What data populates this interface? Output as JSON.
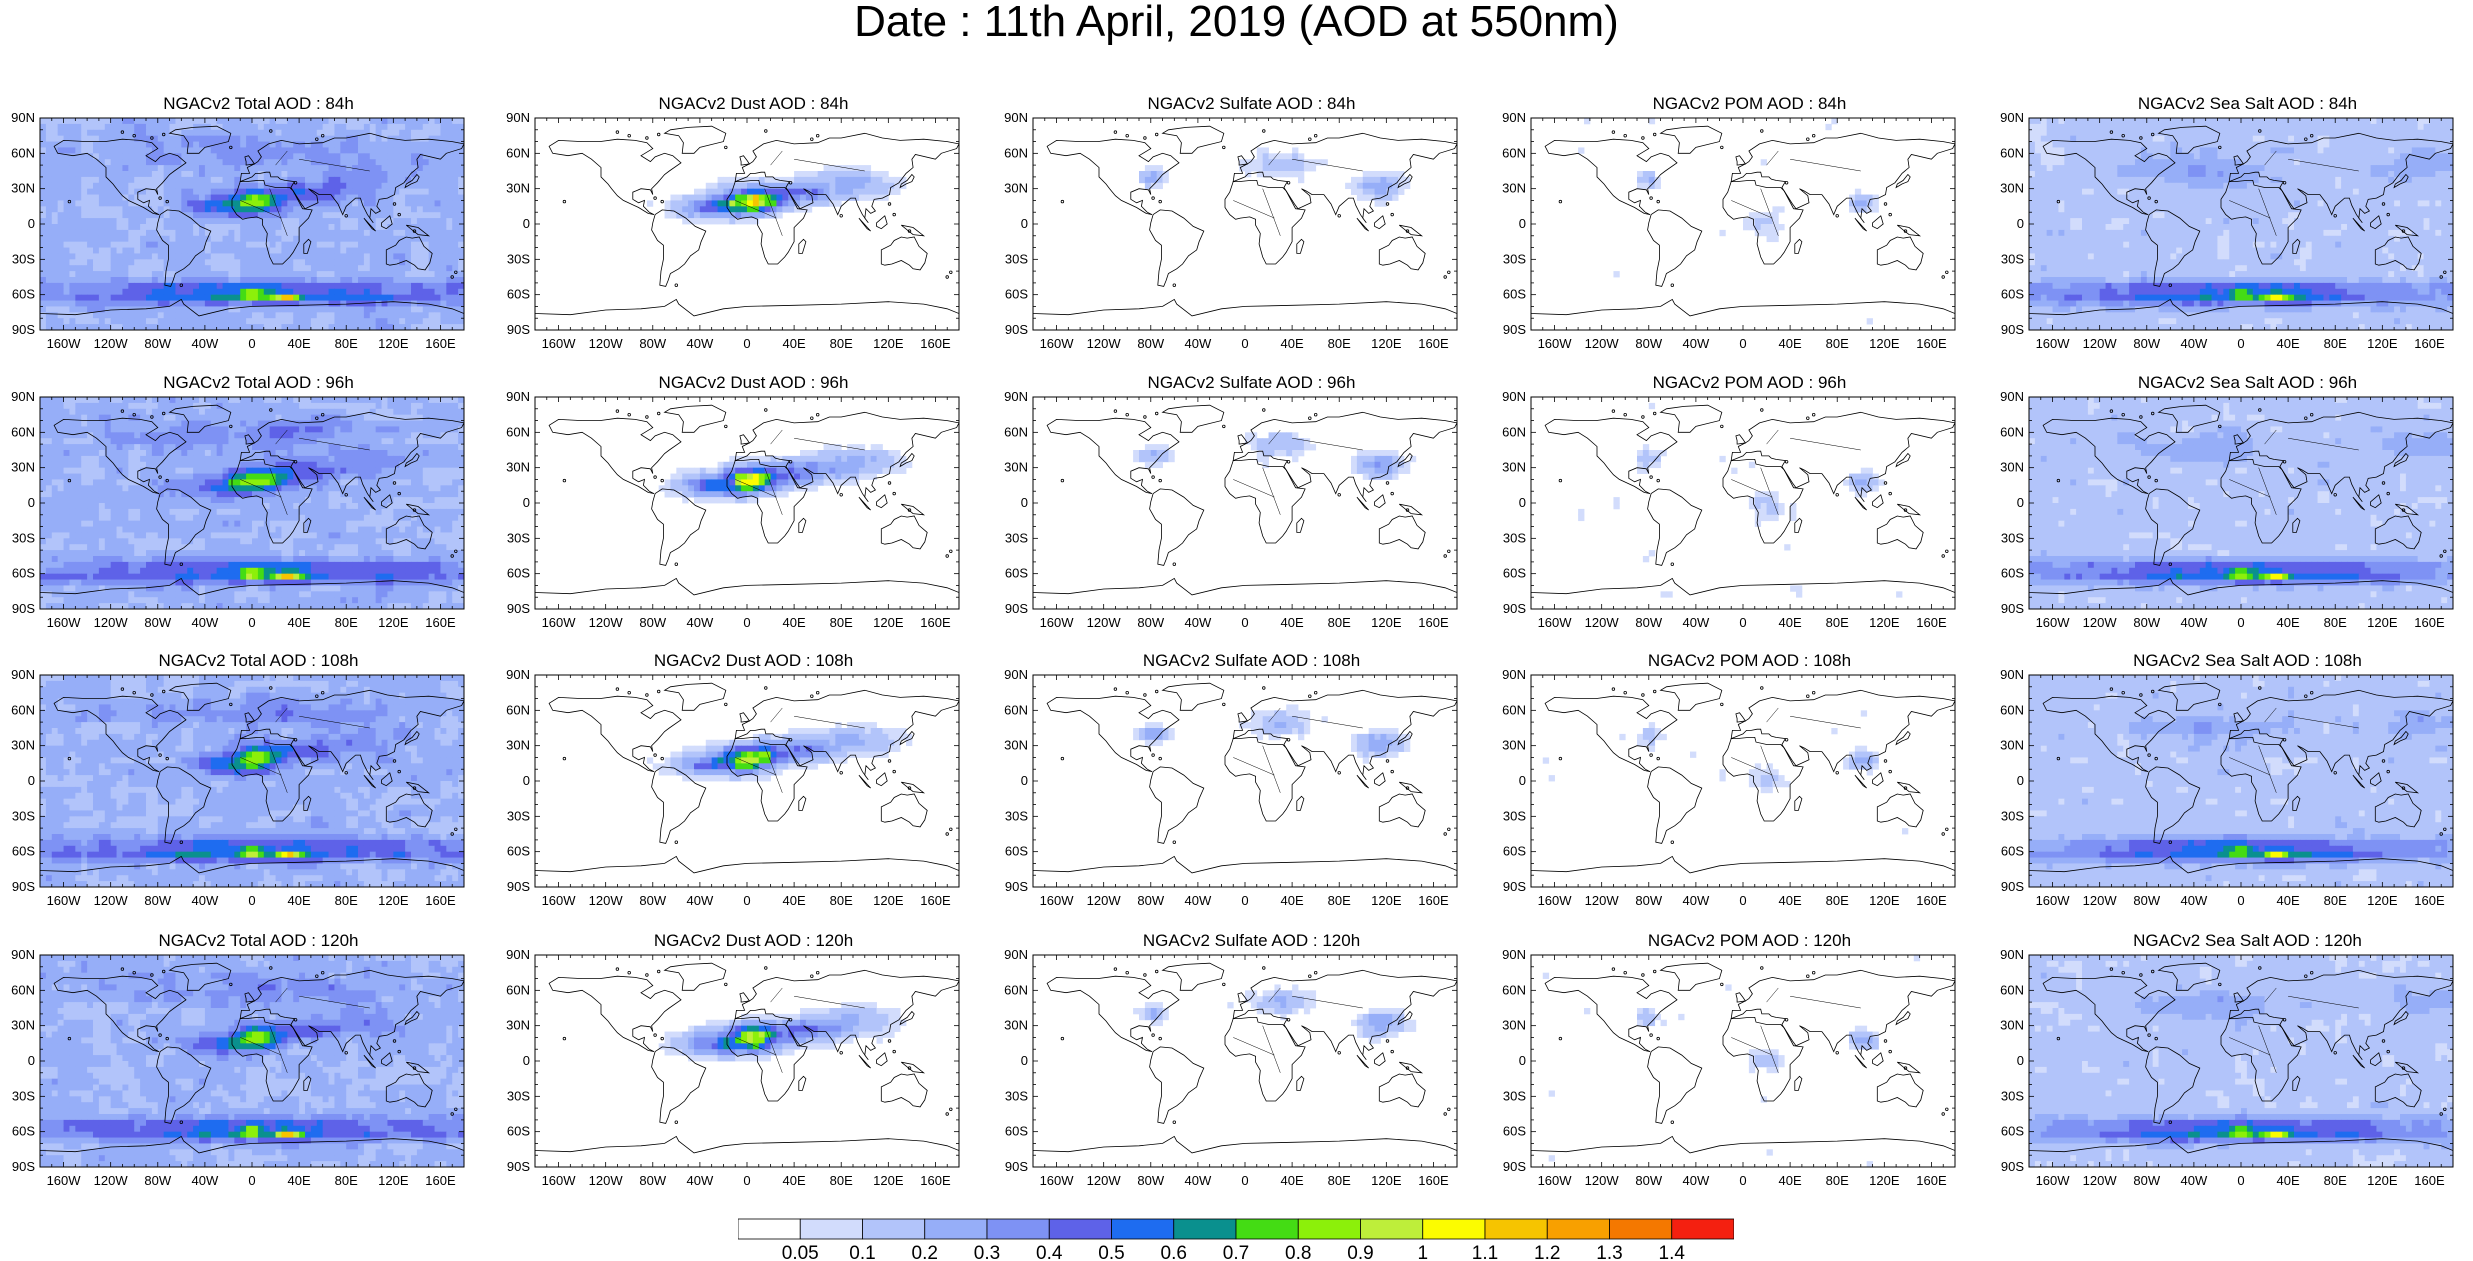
{
  "title": "Date : 11th April, 2019 (AOD at 550nm)",
  "panels": [
    {
      "title": "NGACv2 Total AOD : 84h",
      "species": "total",
      "hour": 84
    },
    {
      "title": "NGACv2 Dust AOD : 84h",
      "species": "dust",
      "hour": 84
    },
    {
      "title": "NGACv2 Sulfate AOD : 84h",
      "species": "sulfate",
      "hour": 84
    },
    {
      "title": "NGACv2 POM AOD : 84h",
      "species": "pom",
      "hour": 84
    },
    {
      "title": "NGACv2 Sea Salt AOD : 84h",
      "species": "seasalt",
      "hour": 84
    },
    {
      "title": "NGACv2 Total AOD : 96h",
      "species": "total",
      "hour": 96
    },
    {
      "title": "NGACv2 Dust AOD : 96h",
      "species": "dust",
      "hour": 96
    },
    {
      "title": "NGACv2 Sulfate AOD : 96h",
      "species": "sulfate",
      "hour": 96
    },
    {
      "title": "NGACv2 POM AOD : 96h",
      "species": "pom",
      "hour": 96
    },
    {
      "title": "NGACv2 Sea Salt AOD : 96h",
      "species": "seasalt",
      "hour": 96
    },
    {
      "title": "NGACv2 Total AOD : 108h",
      "species": "total",
      "hour": 108
    },
    {
      "title": "NGACv2 Dust AOD : 108h",
      "species": "dust",
      "hour": 108
    },
    {
      "title": "NGACv2 Sulfate AOD : 108h",
      "species": "sulfate",
      "hour": 108
    },
    {
      "title": "NGACv2 POM AOD : 108h",
      "species": "pom",
      "hour": 108
    },
    {
      "title": "NGACv2 Sea Salt AOD : 108h",
      "species": "seasalt",
      "hour": 108
    },
    {
      "title": "NGACv2 Total AOD : 120h",
      "species": "total",
      "hour": 120
    },
    {
      "title": "NGACv2 Dust AOD : 120h",
      "species": "dust",
      "hour": 120
    },
    {
      "title": "NGACv2 Sulfate AOD : 120h",
      "species": "sulfate",
      "hour": 120
    },
    {
      "title": "NGACv2 POM AOD : 120h",
      "species": "pom",
      "hour": 120
    },
    {
      "title": "NGACv2 Sea Salt  AOD : 120h",
      "species": "seasalt",
      "hour": 120
    }
  ],
  "axes": {
    "lat_labels": [
      "90N",
      "60N",
      "30N",
      "0",
      "30S",
      "60S",
      "90S"
    ],
    "lon_labels": [
      "160W",
      "120W",
      "80W",
      "40W",
      "0",
      "40E",
      "80E",
      "120E",
      "160E"
    ]
  },
  "colorbar": {
    "labels": [
      "0.05",
      "0.1",
      "0.2",
      "0.3",
      "0.4",
      "0.5",
      "0.6",
      "0.7",
      "0.8",
      "0.9",
      "1",
      "1.1",
      "1.2",
      "1.3",
      "1.4"
    ],
    "colors": [
      "#ffffff",
      "#d2dcfc",
      "#b2c4fa",
      "#96aef8",
      "#7e92f4",
      "#5e62e8",
      "#1e6cf0",
      "#0a908e",
      "#44dc14",
      "#8cf00a",
      "#beee3a",
      "#fcfc00",
      "#f6c400",
      "#f8a000",
      "#f47800",
      "#f42010"
    ]
  }
}
